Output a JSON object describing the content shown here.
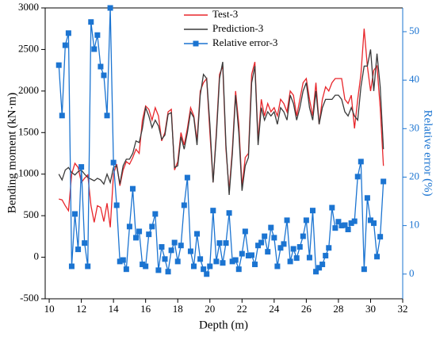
{
  "chart_data": {
    "type": "line",
    "xlabel": "Depth (m)",
    "ylabel": "Bending moment (kN·m)",
    "y2label": "Relative error (%)",
    "x": [
      10.6,
      10.8,
      11.0,
      11.2,
      11.4,
      11.6,
      11.8,
      12.0,
      12.2,
      12.4,
      12.6,
      12.8,
      13.0,
      13.2,
      13.4,
      13.6,
      13.8,
      14.0,
      14.2,
      14.4,
      14.6,
      14.8,
      15.0,
      15.2,
      15.4,
      15.6,
      15.8,
      16.0,
      16.2,
      16.4,
      16.6,
      16.8,
      17.0,
      17.2,
      17.4,
      17.6,
      17.8,
      18.0,
      18.2,
      18.4,
      18.6,
      18.8,
      19.0,
      19.2,
      19.4,
      19.6,
      19.8,
      20.0,
      20.2,
      20.4,
      20.6,
      20.8,
      21.0,
      21.2,
      21.4,
      21.6,
      21.8,
      22.0,
      22.2,
      22.4,
      22.6,
      22.8,
      23.0,
      23.2,
      23.4,
      23.6,
      23.8,
      24.0,
      24.2,
      24.4,
      24.6,
      24.8,
      25.0,
      25.2,
      25.4,
      25.6,
      25.8,
      26.0,
      26.2,
      26.4,
      26.6,
      26.8,
      27.0,
      27.2,
      27.4,
      27.6,
      27.8,
      28.0,
      28.2,
      28.4,
      28.6,
      28.8,
      29.0,
      29.2,
      29.4,
      29.6,
      29.8,
      30.0,
      30.2,
      30.4,
      30.6,
      30.8
    ],
    "series": [
      {
        "name": "Test-3",
        "color": "#e8262b",
        "values": [
          700,
          690,
          620,
          560,
          1000,
          1130,
          1080,
          900,
          950,
          990,
          620,
          420,
          620,
          600,
          430,
          650,
          360,
          1000,
          1120,
          860,
          1050,
          1150,
          1120,
          1200,
          1300,
          1250,
          1650,
          1820,
          1780,
          1650,
          1800,
          1700,
          1400,
          1500,
          1750,
          1780,
          1050,
          1150,
          1500,
          1350,
          1550,
          1800,
          1700,
          1400,
          2000,
          2100,
          2150,
          1500,
          900,
          1500,
          2200,
          2300,
          1300,
          800,
          1300,
          2000,
          1600,
          850,
          1200,
          1250,
          2200,
          2350,
          1400,
          1900,
          1700,
          1850,
          1750,
          1800,
          1700,
          1900,
          1850,
          1750,
          2000,
          1950,
          1700,
          1900,
          2100,
          2150,
          1900,
          1700,
          2100,
          1600,
          1900,
          2050,
          2000,
          2100,
          2150,
          2150,
          2150,
          1900,
          1850,
          1950,
          1550,
          1900,
          2200,
          2750,
          2300,
          2000,
          2250,
          2300,
          1800,
          1100
        ]
      },
      {
        "name": "Prediction-3",
        "color": "#3a3a3a",
        "values": [
          1000,
          930,
          1050,
          1080,
          1020,
          990,
          1030,
          1050,
          1000,
          960,
          940,
          920,
          950,
          930,
          880,
          1000,
          900,
          1080,
          1100,
          880,
          1100,
          1180,
          1180,
          1250,
          1400,
          1380,
          1550,
          1800,
          1700,
          1560,
          1650,
          1580,
          1420,
          1470,
          1720,
          1740,
          1080,
          1100,
          1450,
          1300,
          1500,
          1750,
          1680,
          1350,
          1950,
          2200,
          2150,
          1600,
          900,
          1450,
          2150,
          2350,
          1350,
          750,
          1250,
          1950,
          1500,
          800,
          1100,
          1200,
          2100,
          2300,
          1350,
          1800,
          1650,
          1750,
          1700,
          1750,
          1600,
          1800,
          1750,
          1650,
          1950,
          1850,
          1650,
          1800,
          2000,
          2100,
          1800,
          1650,
          2000,
          1600,
          1800,
          1900,
          1900,
          1900,
          1950,
          1950,
          1900,
          1750,
          1700,
          1800,
          1700,
          1650,
          2050,
          2300,
          2300,
          2500,
          2000,
          2450,
          2050,
          1300
        ]
      },
      {
        "name": "Relative error-3",
        "color": "#1b74d1",
        "axis": "y2",
        "marker": "square",
        "values": [
          43.1,
          32.7,
          47.2,
          49.7,
          1.6,
          12.4,
          5.1,
          22.1,
          6.4,
          1.6,
          52.0,
          46.4,
          49.3,
          42.8,
          41.0,
          32.7,
          54.9,
          23.0,
          14.2,
          2.6,
          2.9,
          1.0,
          9.8,
          17.6,
          7.5,
          8.8,
          2.0,
          1.6,
          8.2,
          9.8,
          12.4,
          0.8,
          5.6,
          3.1,
          0.5,
          4.9,
          6.5,
          2.6,
          5.9,
          14.2,
          19.9,
          4.7,
          1.6,
          8.3,
          3.1,
          1.0,
          0,
          1.6,
          13.1,
          2.6,
          6.4,
          2.3,
          6.4,
          12.6,
          2.6,
          2.9,
          1.0,
          4.2,
          8.8,
          3.8,
          3.9,
          2.0,
          5.9,
          6.5,
          7.8,
          4.6,
          9.6,
          7.5,
          1.6,
          5.4,
          6.2,
          11.1,
          2.6,
          5.2,
          3.3,
          5.6,
          7.8,
          11.1,
          3.4,
          13.1,
          0.5,
          1.3,
          2.0,
          3.8,
          5.4,
          13.7,
          9.5,
          10.8,
          10.0,
          10.1,
          9.2,
          10.5,
          10.9,
          20.1,
          23.2,
          1.0,
          15.7,
          11.1,
          10.5,
          3.6,
          7.7,
          19.1
        ]
      }
    ],
    "xlim": [
      9.75,
      32
    ],
    "xticks": [
      10,
      12,
      14,
      16,
      18,
      20,
      22,
      24,
      26,
      28,
      30,
      32
    ],
    "ylim": [
      -500,
      3000
    ],
    "yticks": [
      -500,
      0,
      500,
      1000,
      1500,
      2000,
      2500,
      3000
    ],
    "y2lim": [
      -5.1,
      54.9
    ],
    "y2ticks": [
      0,
      10,
      20,
      30,
      40,
      50
    ],
    "legend": "top-left"
  }
}
